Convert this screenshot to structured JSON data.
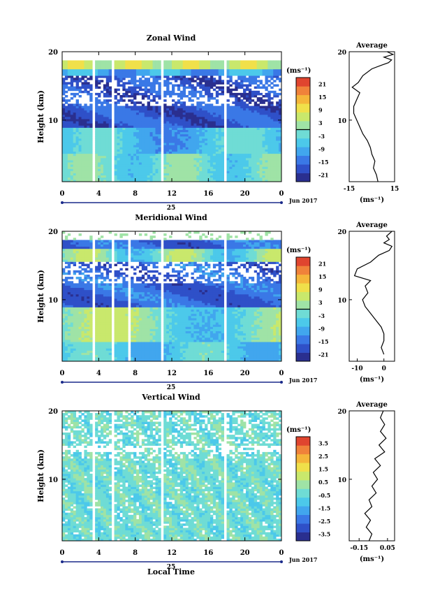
{
  "page": {
    "time_axis_label": "Local Time"
  },
  "chart_data": [
    {
      "type": "heatmap",
      "title": "Zonal Wind",
      "ylabel": "Height (km)",
      "y_ticks": [
        "20",
        "10"
      ],
      "x_ticks": [
        "0",
        "4",
        "8",
        "12",
        "16",
        "20",
        "0"
      ],
      "xlim": [
        0,
        24
      ],
      "ylim": [
        1,
        20
      ],
      "day_label": "25",
      "month_label": "Jun 2017",
      "colorbar": {
        "unit": "(ms⁻¹)",
        "ticks": [
          "21",
          "15",
          "9",
          "3",
          "-3",
          "-9",
          "-15",
          "-21"
        ],
        "range": [
          -24,
          24
        ],
        "zero_contour": true
      },
      "data_gaps": [
        [
          3.4,
          3.7
        ],
        [
          5.5,
          5.8
        ],
        [
          10.8,
          11.2
        ],
        [
          17.8,
          18.1
        ]
      ],
      "average": {
        "title": "Average",
        "xlabel": "(ms⁻¹)",
        "x_ticks": [
          "-15",
          "15"
        ],
        "y_ticks": [
          "20",
          "10"
        ],
        "xlim": [
          -15,
          15
        ],
        "profile": [
          {
            "height": 1,
            "value": 4
          },
          {
            "height": 2,
            "value": 3
          },
          {
            "height": 3,
            "value": 1
          },
          {
            "height": 4,
            "value": 2
          },
          {
            "height": 5,
            "value": 0
          },
          {
            "height": 6,
            "value": -1
          },
          {
            "height": 7,
            "value": -3
          },
          {
            "height": 8,
            "value": -6
          },
          {
            "height": 9,
            "value": -8
          },
          {
            "height": 10,
            "value": -10
          },
          {
            "height": 11,
            "value": -12
          },
          {
            "height": 12,
            "value": -12
          },
          {
            "height": 13,
            "value": -10
          },
          {
            "height": 14,
            "value": -8
          },
          {
            "height": 14.8,
            "value": -13
          },
          {
            "height": 15.5,
            "value": -9
          },
          {
            "height": 16.5,
            "value": -6
          },
          {
            "height": 17.5,
            "value": 0
          },
          {
            "height": 18,
            "value": 6
          },
          {
            "height": 18.4,
            "value": 11
          },
          {
            "height": 18.8,
            "value": 13
          },
          {
            "height": 19.2,
            "value": 8
          },
          {
            "height": 19.6,
            "value": 14
          },
          {
            "height": 20,
            "value": 10
          }
        ]
      }
    },
    {
      "type": "heatmap",
      "title": "Meridional Wind",
      "ylabel": "Height (km)",
      "y_ticks": [
        "20",
        "10"
      ],
      "x_ticks": [
        "0",
        "4",
        "8",
        "12",
        "16",
        "20",
        "0"
      ],
      "xlim": [
        0,
        24
      ],
      "ylim": [
        1,
        20
      ],
      "day_label": "25",
      "month_label": "Jun 2017",
      "colorbar": {
        "unit": "(ms⁻¹)",
        "ticks": [
          "21",
          "15",
          "9",
          "3",
          "-3",
          "-9",
          "-15",
          "-21"
        ],
        "range": [
          -24,
          24
        ],
        "zero_contour": true
      },
      "data_gaps": [
        [
          3.4,
          3.7
        ],
        [
          5.5,
          5.8
        ],
        [
          7.3,
          7.5
        ],
        [
          10.8,
          11.2
        ],
        [
          17.8,
          18.1
        ]
      ],
      "average": {
        "title": "Average",
        "xlabel": "(ms⁻¹)",
        "x_ticks": [
          "-10",
          "0"
        ],
        "y_ticks": [
          "20",
          "10"
        ],
        "xlim": [
          -13,
          4
        ],
        "profile": [
          {
            "height": 2,
            "value": 0
          },
          {
            "height": 3,
            "value": -1
          },
          {
            "height": 4,
            "value": 0
          },
          {
            "height": 5,
            "value": 0
          },
          {
            "height": 6,
            "value": -1
          },
          {
            "height": 7,
            "value": -3
          },
          {
            "height": 8,
            "value": -5
          },
          {
            "height": 9,
            "value": -7
          },
          {
            "height": 10,
            "value": -8
          },
          {
            "height": 11,
            "value": -6
          },
          {
            "height": 12,
            "value": -7
          },
          {
            "height": 12.8,
            "value": -5
          },
          {
            "height": 13.5,
            "value": -11
          },
          {
            "height": 14.5,
            "value": -10
          },
          {
            "height": 15.5,
            "value": -5
          },
          {
            "height": 16.5,
            "value": -2
          },
          {
            "height": 17.2,
            "value": 2
          },
          {
            "height": 17.8,
            "value": 3
          },
          {
            "height": 18.3,
            "value": 0
          },
          {
            "height": 18.8,
            "value": 2
          },
          {
            "height": 19.3,
            "value": 1
          },
          {
            "height": 20,
            "value": 3
          }
        ]
      }
    },
    {
      "type": "heatmap",
      "title": "Vertical Wind",
      "ylabel": "Height (km)",
      "y_ticks": [
        "20",
        "10"
      ],
      "x_ticks": [
        "0",
        "4",
        "8",
        "12",
        "16",
        "20",
        "0"
      ],
      "xlim": [
        0,
        24
      ],
      "ylim": [
        1,
        20
      ],
      "day_label": "25",
      "month_label": "Jun 2017",
      "xlabel": "Local Time",
      "colorbar": {
        "unit": "(ms⁻¹)",
        "ticks": [
          "3.5",
          "2.5",
          "1.5",
          "0.5",
          "-0.5",
          "-1.5",
          "-2.5",
          "-3.5"
        ],
        "range": [
          -4,
          4
        ],
        "zero_contour": false
      },
      "data_gaps": [
        [
          3.4,
          3.7
        ],
        [
          5.5,
          5.8
        ],
        [
          10.8,
          11.2
        ],
        [
          17.8,
          18.1
        ]
      ],
      "average": {
        "title": "Average",
        "xlabel": "(ms⁻¹)",
        "x_ticks": [
          "-0.15",
          "0.05"
        ],
        "y_ticks": [
          "20",
          "10"
        ],
        "xlim": [
          -0.22,
          0.1
        ],
        "profile": [
          {
            "height": 1,
            "value": -0.08
          },
          {
            "height": 2,
            "value": -0.06
          },
          {
            "height": 3,
            "value": -0.1
          },
          {
            "height": 4,
            "value": -0.07
          },
          {
            "height": 5,
            "value": -0.11
          },
          {
            "height": 6,
            "value": -0.06
          },
          {
            "height": 7,
            "value": -0.08
          },
          {
            "height": 8,
            "value": -0.03
          },
          {
            "height": 9,
            "value": -0.06
          },
          {
            "height": 10,
            "value": -0.02
          },
          {
            "height": 11,
            "value": -0.05
          },
          {
            "height": 12,
            "value": 0.0
          },
          {
            "height": 13,
            "value": -0.04
          },
          {
            "height": 14,
            "value": 0.03
          },
          {
            "height": 15,
            "value": -0.01
          },
          {
            "height": 16,
            "value": 0.04
          },
          {
            "height": 17,
            "value": 0.0
          },
          {
            "height": 18,
            "value": 0.03
          },
          {
            "height": 19,
            "value": 0.0
          },
          {
            "height": 20,
            "value": 0.02
          }
        ]
      }
    }
  ]
}
